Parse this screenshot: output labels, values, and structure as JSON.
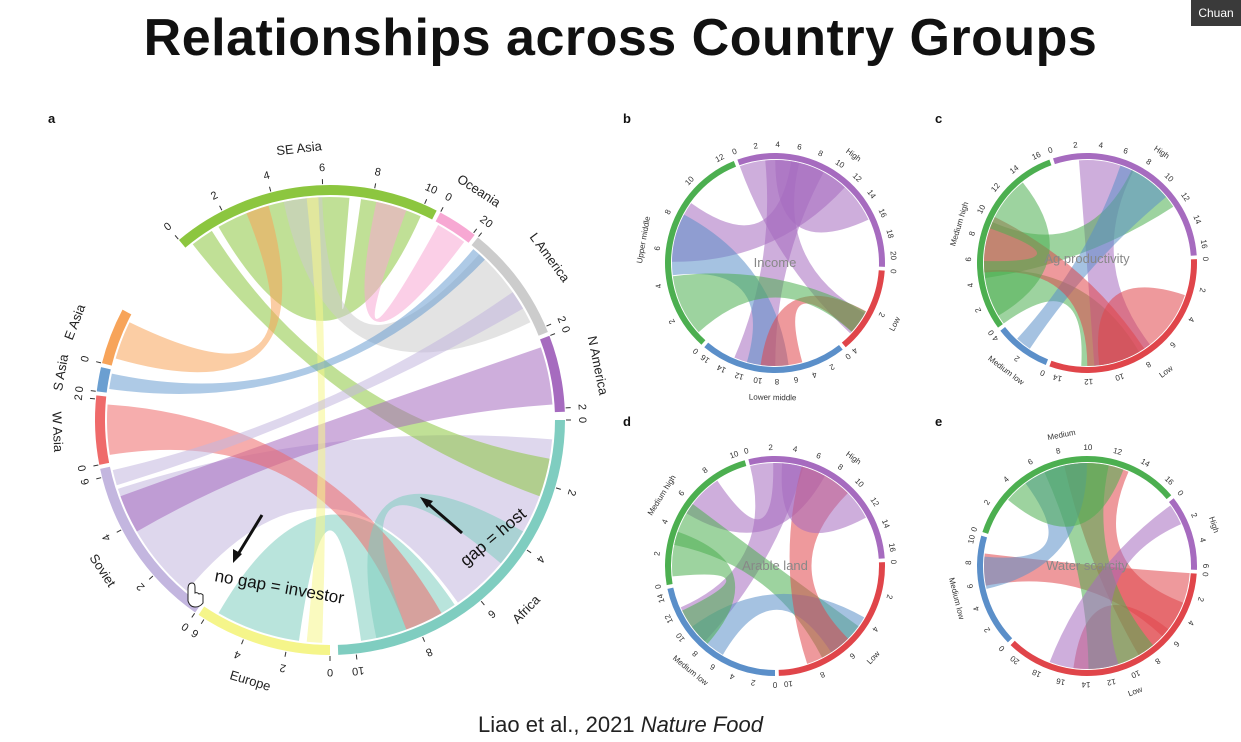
{
  "slide": {
    "title": "Relationships across Country Groups",
    "citation_prefix": "Liao et al., 2021 ",
    "citation_journal": "Nature Food",
    "speaker": "Chuan"
  },
  "panel_a": {
    "letter": "a",
    "colors": {
      "SE Asia": "#8cc63f",
      "Oceania": "#f7a8d3",
      "L America": "#cccccc",
      "N America": "#a66bbf",
      "Africa": "#7fcdc0",
      "Europe": "#f5f58a",
      "Soviet": "#c3b6df",
      "W Asia": "#ef6a6a",
      "S Asia": "#6b9fd1",
      "E Asia": "#f7a45a"
    },
    "sectors": [
      {
        "name": "SE Asia",
        "ticks": [
          "0",
          "2",
          "4",
          "6",
          "8",
          "10"
        ]
      },
      {
        "name": "Oceania",
        "ticks": [
          "0",
          "2"
        ]
      },
      {
        "name": "L America",
        "ticks": [
          "0",
          "2"
        ]
      },
      {
        "name": "N America",
        "ticks": [
          "0",
          "2"
        ]
      },
      {
        "name": "Africa",
        "ticks": [
          "0",
          "2",
          "4",
          "6",
          "8",
          "10"
        ]
      },
      {
        "name": "Europe",
        "ticks": [
          "0",
          "2",
          "4",
          "6"
        ]
      },
      {
        "name": "Soviet",
        "ticks": [
          "0",
          "2",
          "4",
          "6"
        ]
      },
      {
        "name": "W Asia",
        "ticks": [
          "0",
          "2"
        ]
      },
      {
        "name": "S Asia",
        "ticks": [
          "0"
        ]
      },
      {
        "name": "E Asia",
        "ticks": [
          "0"
        ]
      }
    ],
    "annotations": {
      "host": "gap = host",
      "investor": "no gap = investor"
    }
  },
  "small_panels": [
    {
      "letter": "b",
      "center": "Income",
      "sectors": [
        {
          "name": "High",
          "color": "#a66bbf",
          "ticks": [
            "0",
            "2",
            "4",
            "6",
            "8",
            "10",
            "12",
            "14",
            "16",
            "18",
            "20"
          ]
        },
        {
          "name": "Low",
          "color": "#e0454a",
          "ticks": [
            "0",
            "2",
            "4"
          ]
        },
        {
          "name": "Lower middle",
          "color": "#5b8fc9",
          "ticks": [
            "0",
            "2",
            "4",
            "6",
            "8",
            "10",
            "12",
            "14",
            "16"
          ]
        },
        {
          "name": "Upper middle",
          "color": "#4caf50",
          "ticks": [
            "0",
            "2",
            "4",
            "6",
            "8",
            "10",
            "12"
          ]
        }
      ]
    },
    {
      "letter": "c",
      "center": "Ag productivity",
      "sectors": [
        {
          "name": "High",
          "color": "#a66bbf",
          "ticks": [
            "0",
            "2",
            "4",
            "6",
            "8",
            "10",
            "12",
            "14",
            "16"
          ]
        },
        {
          "name": "Low",
          "color": "#e0454a",
          "ticks": [
            "0",
            "2",
            "4",
            "6",
            "8",
            "10",
            "12",
            "14"
          ]
        },
        {
          "name": "Medium low",
          "color": "#5b8fc9",
          "ticks": [
            "0",
            "2",
            "4"
          ]
        },
        {
          "name": "Medium high",
          "color": "#4caf50",
          "ticks": [
            "0",
            "2",
            "4",
            "6",
            "8",
            "10",
            "12",
            "14",
            "16"
          ]
        }
      ]
    },
    {
      "letter": "d",
      "center": "Arable land",
      "sectors": [
        {
          "name": "High",
          "color": "#a66bbf",
          "ticks": [
            "0",
            "2",
            "4",
            "6",
            "8",
            "10",
            "12",
            "14",
            "16"
          ]
        },
        {
          "name": "Low",
          "color": "#e0454a",
          "ticks": [
            "0",
            "2",
            "4",
            "6",
            "8",
            "10"
          ]
        },
        {
          "name": "Medium low",
          "color": "#5b8fc9",
          "ticks": [
            "0",
            "2",
            "4",
            "6",
            "8",
            "10",
            "12",
            "14"
          ]
        },
        {
          "name": "Medium high",
          "color": "#4caf50",
          "ticks": [
            "0",
            "2",
            "4",
            "6",
            "8",
            "10"
          ]
        }
      ]
    },
    {
      "letter": "e",
      "center": "Water scarcity",
      "sectors": [
        {
          "name": "High",
          "color": "#a66bbf",
          "ticks": [
            "0",
            "2",
            "4",
            "6"
          ]
        },
        {
          "name": "Low",
          "color": "#e0454a",
          "ticks": [
            "0",
            "2",
            "4",
            "6",
            "8",
            "10",
            "12",
            "14",
            "16",
            "18",
            "20"
          ]
        },
        {
          "name": "Medium low",
          "color": "#5b8fc9",
          "ticks": [
            "0",
            "2",
            "4",
            "6",
            "8",
            "10"
          ]
        },
        {
          "name": "Medium",
          "color": "#4caf50",
          "ticks": [
            "0",
            "2",
            "4",
            "6",
            "8",
            "10",
            "12",
            "14",
            "16"
          ]
        }
      ]
    }
  ]
}
